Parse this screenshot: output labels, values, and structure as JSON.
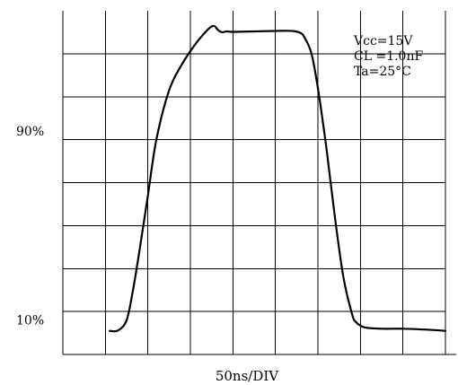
{
  "chart_data": {
    "type": "line",
    "xlabel": "50ns/DIV",
    "x_divisions": 9,
    "y_divisions": 8,
    "grid": true,
    "ytick_labels": [
      {
        "text": "90%",
        "level": 5.2
      },
      {
        "text": "10%",
        "level": 0.8
      }
    ],
    "annotations": [
      "Vcc=15V",
      "CL =1.0nF",
      "Ta=25°C"
    ],
    "annotation_position": "top-right",
    "series": [
      {
        "x_div": [
          1.1,
          1.3,
          1.5,
          1.65,
          1.8,
          2.0,
          2.2,
          2.5,
          2.8,
          3.1,
          3.4,
          3.55,
          3.65,
          3.75,
          3.85,
          4.0,
          4.5,
          5.0,
          5.4,
          5.6,
          5.7,
          5.85,
          6.0,
          6.2,
          6.4,
          6.6,
          6.8,
          6.9,
          7.1,
          7.5,
          8.0,
          8.5,
          9.0
        ],
        "y_div": [
          0.55,
          0.56,
          0.8,
          1.5,
          2.4,
          3.7,
          5.0,
          6.15,
          6.75,
          7.2,
          7.55,
          7.65,
          7.55,
          7.5,
          7.52,
          7.51,
          7.52,
          7.53,
          7.53,
          7.48,
          7.35,
          7.0,
          6.2,
          4.8,
          3.2,
          1.8,
          0.95,
          0.75,
          0.63,
          0.6,
          0.6,
          0.58,
          0.55
        ]
      }
    ]
  }
}
